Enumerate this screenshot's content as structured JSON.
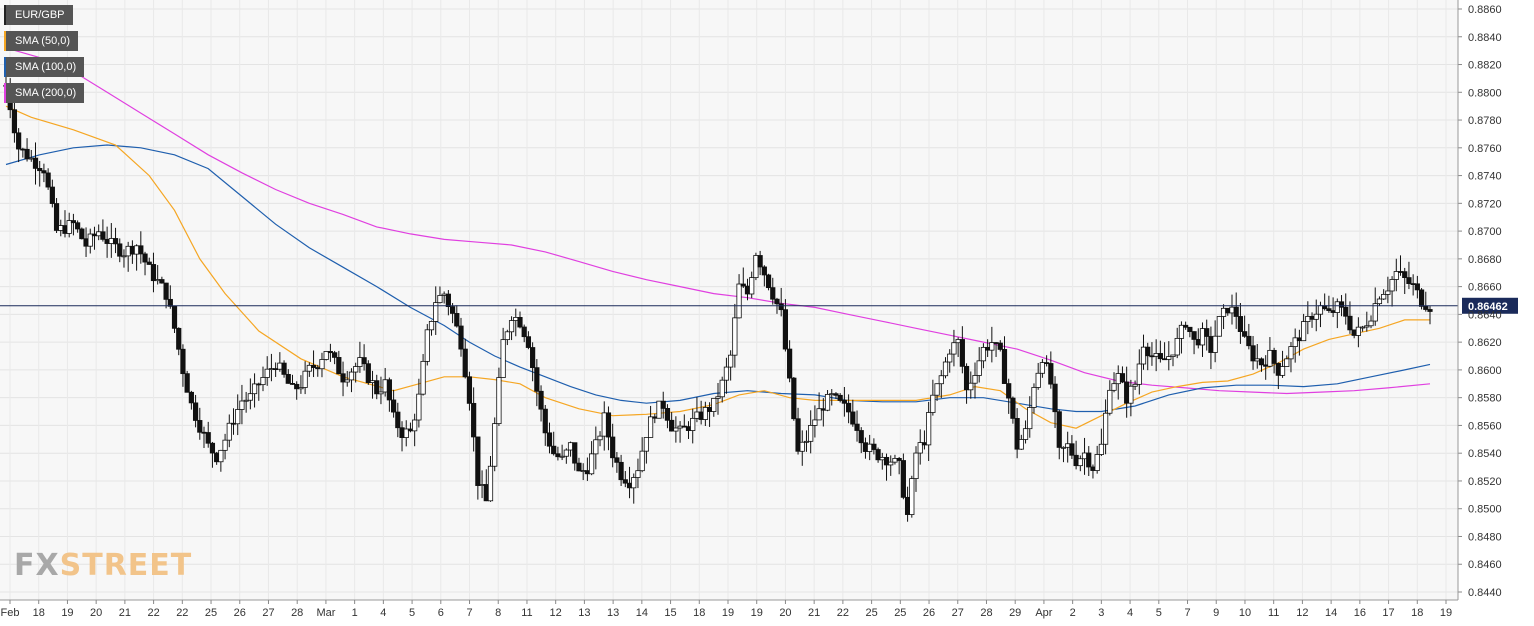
{
  "legend": [
    {
      "label": "EUR/GBP",
      "color": "#222222"
    },
    {
      "label": "SMA (50,0)",
      "color": "#f5a623"
    },
    {
      "label": "SMA (100,0)",
      "color": "#1f5fae"
    },
    {
      "label": "SMA (200,0)",
      "color": "#e040e0"
    }
  ],
  "watermark": {
    "part1": "FX",
    "part2": "STREET"
  },
  "chart_data": {
    "type": "candlestick",
    "symbol": "EUR/GBP",
    "ylim": [
      0.844,
      0.886
    ],
    "y_ticks": [
      "0.8860",
      "0.8840",
      "0.8820",
      "0.8800",
      "0.8780",
      "0.8760",
      "0.8740",
      "0.8720",
      "0.8700",
      "0.8680",
      "0.8660",
      "0.8640",
      "0.8620",
      "0.8600",
      "0.8580",
      "0.8560",
      "0.8540",
      "0.8520",
      "0.8500",
      "0.8480",
      "0.8460",
      "0.8440"
    ],
    "x_ticks": [
      "Feb",
      "18",
      "19",
      "20",
      "21",
      "22",
      "22",
      "25",
      "26",
      "27",
      "28",
      "Mar",
      "1",
      "4",
      "5",
      "6",
      "7",
      "8",
      "11",
      "12",
      "13",
      "13",
      "14",
      "15",
      "18",
      "19",
      "19",
      "20",
      "21",
      "22",
      "25",
      "25",
      "26",
      "27",
      "28",
      "29",
      "Apr",
      "2",
      "3",
      "4",
      "5",
      "7",
      "9",
      "10",
      "11",
      "12",
      "14",
      "16",
      "17",
      "18",
      "19"
    ],
    "current_price": {
      "label": "0.86462",
      "value": 0.86462,
      "color": "#1a2a5a"
    },
    "price_path": [
      [
        0,
        0.8805
      ],
      [
        1.5,
        0.876
      ],
      [
        3,
        0.8752
      ],
      [
        4.5,
        0.8745
      ],
      [
        6,
        0.87
      ],
      [
        8,
        0.8705
      ],
      [
        9.5,
        0.869
      ],
      [
        11,
        0.87
      ],
      [
        12.5,
        0.869
      ],
      [
        14,
        0.8685
      ],
      [
        15.5,
        0.869
      ],
      [
        17,
        0.8672
      ],
      [
        19,
        0.8655
      ],
      [
        20,
        0.863
      ],
      [
        21,
        0.86
      ],
      [
        22,
        0.8575
      ],
      [
        23,
        0.856
      ],
      [
        24,
        0.8545
      ],
      [
        25,
        0.8538
      ],
      [
        26,
        0.855
      ],
      [
        27,
        0.8565
      ],
      [
        28,
        0.8578
      ],
      [
        29,
        0.858
      ],
      [
        30,
        0.859
      ],
      [
        31,
        0.8598
      ],
      [
        32,
        0.8605
      ],
      [
        33,
        0.8595
      ],
      [
        34,
        0.8585
      ],
      [
        35,
        0.859
      ],
      [
        36,
        0.86
      ],
      [
        37,
        0.8605
      ],
      [
        38,
        0.8615
      ],
      [
        39,
        0.8605
      ],
      [
        40,
        0.8595
      ],
      [
        41,
        0.86
      ],
      [
        42,
        0.8605
      ],
      [
        43,
        0.8595
      ],
      [
        44,
        0.8585
      ],
      [
        45,
        0.859
      ],
      [
        46,
        0.8565
      ],
      [
        47,
        0.8555
      ],
      [
        48,
        0.8555
      ],
      [
        49,
        0.858
      ],
      [
        50,
        0.8625
      ],
      [
        51,
        0.865
      ],
      [
        52,
        0.8655
      ],
      [
        53,
        0.864
      ],
      [
        54,
        0.862
      ],
      [
        55,
        0.858
      ],
      [
        56,
        0.852
      ],
      [
        57,
        0.8505
      ],
      [
        58,
        0.856
      ],
      [
        59,
        0.862
      ],
      [
        60,
        0.864
      ],
      [
        61,
        0.8635
      ],
      [
        62,
        0.862
      ],
      [
        63,
        0.8585
      ],
      [
        64,
        0.8555
      ],
      [
        65,
        0.854
      ],
      [
        66,
        0.8535
      ],
      [
        67,
        0.8545
      ],
      [
        68,
        0.8525
      ],
      [
        69,
        0.853
      ],
      [
        70,
        0.8545
      ],
      [
        71,
        0.8565
      ],
      [
        72,
        0.854
      ],
      [
        73,
        0.8525
      ],
      [
        74,
        0.852
      ],
      [
        75,
        0.853
      ],
      [
        76,
        0.8555
      ],
      [
        77,
        0.857
      ],
      [
        78,
        0.8575
      ],
      [
        79,
        0.856
      ],
      [
        80,
        0.8555
      ],
      [
        81,
        0.856
      ],
      [
        82,
        0.8565
      ],
      [
        83,
        0.857
      ],
      [
        84,
        0.8575
      ],
      [
        85,
        0.859
      ],
      [
        86,
        0.861
      ],
      [
        87,
        0.866
      ],
      [
        88,
        0.8655
      ],
      [
        89,
        0.8685
      ],
      [
        90,
        0.867
      ],
      [
        91,
        0.8655
      ],
      [
        92,
        0.864
      ],
      [
        93,
        0.859
      ],
      [
        94,
        0.854
      ],
      [
        95,
        0.855
      ],
      [
        96,
        0.8565
      ],
      [
        97,
        0.8575
      ],
      [
        98,
        0.858
      ],
      [
        99,
        0.8575
      ],
      [
        100,
        0.857
      ],
      [
        101,
        0.856
      ],
      [
        102,
        0.8545
      ],
      [
        103,
        0.854
      ],
      [
        104,
        0.8538
      ],
      [
        105,
        0.8535
      ],
      [
        106,
        0.853
      ],
      [
        107,
        0.8495
      ],
      [
        108,
        0.854
      ],
      [
        109,
        0.855
      ],
      [
        110,
        0.858
      ],
      [
        111,
        0.8595
      ],
      [
        112,
        0.8615
      ],
      [
        113,
        0.862
      ],
      [
        114,
        0.8585
      ],
      [
        115,
        0.86
      ],
      [
        116,
        0.8615
      ],
      [
        117,
        0.862
      ],
      [
        118,
        0.861
      ],
      [
        119,
        0.858
      ],
      [
        120,
        0.8545
      ],
      [
        121,
        0.8555
      ],
      [
        122,
        0.859
      ],
      [
        123,
        0.861
      ],
      [
        124,
        0.859
      ],
      [
        125,
        0.854
      ],
      [
        126,
        0.8545
      ],
      [
        127,
        0.8535
      ],
      [
        128,
        0.854
      ],
      [
        129,
        0.853
      ],
      [
        130,
        0.8545
      ],
      [
        131,
        0.859
      ],
      [
        132,
        0.8595
      ],
      [
        133,
        0.858
      ],
      [
        134,
        0.859
      ],
      [
        135,
        0.862
      ],
      [
        136,
        0.861
      ],
      [
        137,
        0.8605
      ],
      [
        138,
        0.861
      ],
      [
        139,
        0.862
      ],
      [
        140,
        0.8635
      ],
      [
        141,
        0.862
      ],
      [
        142,
        0.8625
      ],
      [
        143,
        0.8615
      ],
      [
        144,
        0.8635
      ],
      [
        145,
        0.8645
      ],
      [
        146,
        0.864
      ],
      [
        147,
        0.862
      ],
      [
        148,
        0.861
      ],
      [
        149,
        0.8605
      ],
      [
        150,
        0.861
      ],
      [
        151,
        0.86
      ],
      [
        152,
        0.861
      ],
      [
        153,
        0.862
      ],
      [
        154,
        0.863
      ],
      [
        155,
        0.864
      ],
      [
        156,
        0.8645
      ],
      [
        157,
        0.864
      ],
      [
        158,
        0.8645
      ],
      [
        159,
        0.864
      ],
      [
        160,
        0.8625
      ],
      [
        161,
        0.863
      ],
      [
        162,
        0.864
      ],
      [
        163,
        0.8655
      ],
      [
        164,
        0.866
      ],
      [
        165,
        0.867
      ],
      [
        166,
        0.8665
      ],
      [
        167,
        0.866
      ],
      [
        168,
        0.865
      ],
      [
        169,
        0.8646
      ]
    ],
    "sma50": [
      [
        0,
        0.879
      ],
      [
        3,
        0.8782
      ],
      [
        8,
        0.8773
      ],
      [
        13,
        0.8762
      ],
      [
        17,
        0.874
      ],
      [
        20,
        0.8715
      ],
      [
        23,
        0.868
      ],
      [
        26,
        0.8655
      ],
      [
        30,
        0.8628
      ],
      [
        35,
        0.8608
      ],
      [
        40,
        0.8595
      ],
      [
        43,
        0.859
      ],
      [
        46,
        0.8585
      ],
      [
        49,
        0.859
      ],
      [
        52,
        0.8595
      ],
      [
        55,
        0.8595
      ],
      [
        58,
        0.8593
      ],
      [
        61,
        0.859
      ],
      [
        64,
        0.858
      ],
      [
        68,
        0.8572
      ],
      [
        72,
        0.8567
      ],
      [
        76,
        0.8568
      ],
      [
        80,
        0.857
      ],
      [
        84,
        0.8575
      ],
      [
        87,
        0.8582
      ],
      [
        90,
        0.8585
      ],
      [
        93,
        0.858
      ],
      [
        96,
        0.8578
      ],
      [
        100,
        0.8578
      ],
      [
        104,
        0.8578
      ],
      [
        108,
        0.8578
      ],
      [
        112,
        0.8582
      ],
      [
        115,
        0.8588
      ],
      [
        118,
        0.8585
      ],
      [
        121,
        0.8572
      ],
      [
        124,
        0.8562
      ],
      [
        127,
        0.8558
      ],
      [
        130,
        0.8567
      ],
      [
        133,
        0.8576
      ],
      [
        136,
        0.8584
      ],
      [
        139,
        0.8588
      ],
      [
        142,
        0.8591
      ],
      [
        145,
        0.8592
      ],
      [
        148,
        0.8597
      ],
      [
        151,
        0.8605
      ],
      [
        154,
        0.8615
      ],
      [
        157,
        0.8622
      ],
      [
        160,
        0.8626
      ],
      [
        163,
        0.863
      ],
      [
        166,
        0.8636
      ],
      [
        169,
        0.8636
      ]
    ],
    "sma100": [
      [
        0,
        0.8748
      ],
      [
        4,
        0.8755
      ],
      [
        8,
        0.876
      ],
      [
        12,
        0.8762
      ],
      [
        16,
        0.876
      ],
      [
        20,
        0.8755
      ],
      [
        24,
        0.8745
      ],
      [
        28,
        0.8725
      ],
      [
        32,
        0.8705
      ],
      [
        36,
        0.8688
      ],
      [
        40,
        0.8674
      ],
      [
        44,
        0.866
      ],
      [
        48,
        0.8645
      ],
      [
        52,
        0.8632
      ],
      [
        55,
        0.862
      ],
      [
        58,
        0.861
      ],
      [
        61,
        0.8602
      ],
      [
        64,
        0.8595
      ],
      [
        67,
        0.8588
      ],
      [
        70,
        0.8582
      ],
      [
        73,
        0.8578
      ],
      [
        76,
        0.8576
      ],
      [
        80,
        0.8578
      ],
      [
        84,
        0.8583
      ],
      [
        88,
        0.8585
      ],
      [
        92,
        0.8583
      ],
      [
        96,
        0.8582
      ],
      [
        100,
        0.8578
      ],
      [
        104,
        0.8577
      ],
      [
        108,
        0.8577
      ],
      [
        112,
        0.858
      ],
      [
        116,
        0.858
      ],
      [
        120,
        0.8576
      ],
      [
        124,
        0.8572
      ],
      [
        127,
        0.857
      ],
      [
        130,
        0.857
      ],
      [
        134,
        0.8574
      ],
      [
        138,
        0.8582
      ],
      [
        142,
        0.8587
      ],
      [
        146,
        0.8589
      ],
      [
        150,
        0.8589
      ],
      [
        154,
        0.8588
      ],
      [
        158,
        0.859
      ],
      [
        162,
        0.8595
      ],
      [
        166,
        0.86
      ],
      [
        169,
        0.8604
      ]
    ],
    "sma200": [
      [
        0,
        0.8832
      ],
      [
        4,
        0.8825
      ],
      [
        8,
        0.8815
      ],
      [
        12,
        0.88
      ],
      [
        16,
        0.8785
      ],
      [
        20,
        0.877
      ],
      [
        24,
        0.8755
      ],
      [
        28,
        0.8742
      ],
      [
        32,
        0.873
      ],
      [
        36,
        0.872
      ],
      [
        40,
        0.8712
      ],
      [
        44,
        0.8703
      ],
      [
        48,
        0.8698
      ],
      [
        52,
        0.8694
      ],
      [
        56,
        0.8692
      ],
      [
        60,
        0.869
      ],
      [
        64,
        0.8685
      ],
      [
        68,
        0.8678
      ],
      [
        72,
        0.8671
      ],
      [
        76,
        0.8665
      ],
      [
        80,
        0.866
      ],
      [
        84,
        0.8655
      ],
      [
        88,
        0.8652
      ],
      [
        92,
        0.8648
      ],
      [
        96,
        0.8645
      ],
      [
        100,
        0.864
      ],
      [
        104,
        0.8635
      ],
      [
        108,
        0.863
      ],
      [
        112,
        0.8625
      ],
      [
        116,
        0.862
      ],
      [
        120,
        0.8615
      ],
      [
        124,
        0.8607
      ],
      [
        128,
        0.8598
      ],
      [
        132,
        0.8592
      ],
      [
        136,
        0.8589
      ],
      [
        140,
        0.8587
      ],
      [
        144,
        0.8585
      ],
      [
        148,
        0.8584
      ],
      [
        152,
        0.8583
      ],
      [
        156,
        0.8584
      ],
      [
        160,
        0.8585
      ],
      [
        164,
        0.8587
      ],
      [
        169,
        0.859
      ]
    ]
  }
}
